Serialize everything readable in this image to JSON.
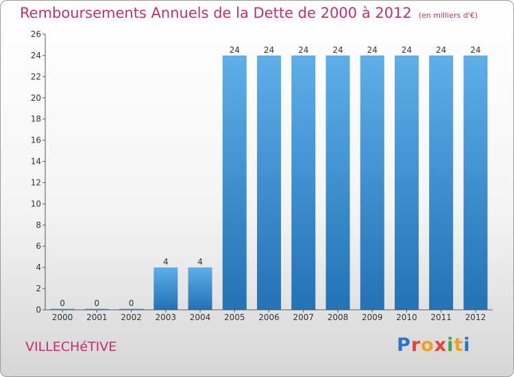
{
  "title": "Remboursements Annuels de la Dette de 2000 à 2012",
  "unit": "(en milliers d'€)",
  "commune": "VILLECHéTIVE",
  "logo": {
    "text": "Proxiti"
  },
  "colors": {
    "bar_light": "#5eaeea",
    "bar_dark": "#2272b5",
    "title": "#c0306a"
  },
  "chart_data": {
    "type": "bar",
    "title": "Remboursements Annuels de la Dette de 2000 à 2012",
    "categories": [
      "2000",
      "2001",
      "2002",
      "2003",
      "2004",
      "2005",
      "2006",
      "2007",
      "2008",
      "2009",
      "2010",
      "2011",
      "2012"
    ],
    "values": [
      0,
      0,
      0,
      4,
      4,
      24,
      24,
      24,
      24,
      24,
      24,
      24,
      24
    ],
    "ylim": [
      0,
      26
    ],
    "yticks": [
      0,
      2,
      4,
      6,
      8,
      10,
      12,
      14,
      16,
      18,
      20,
      22,
      24,
      26
    ],
    "grid": false,
    "data_labels": true
  }
}
